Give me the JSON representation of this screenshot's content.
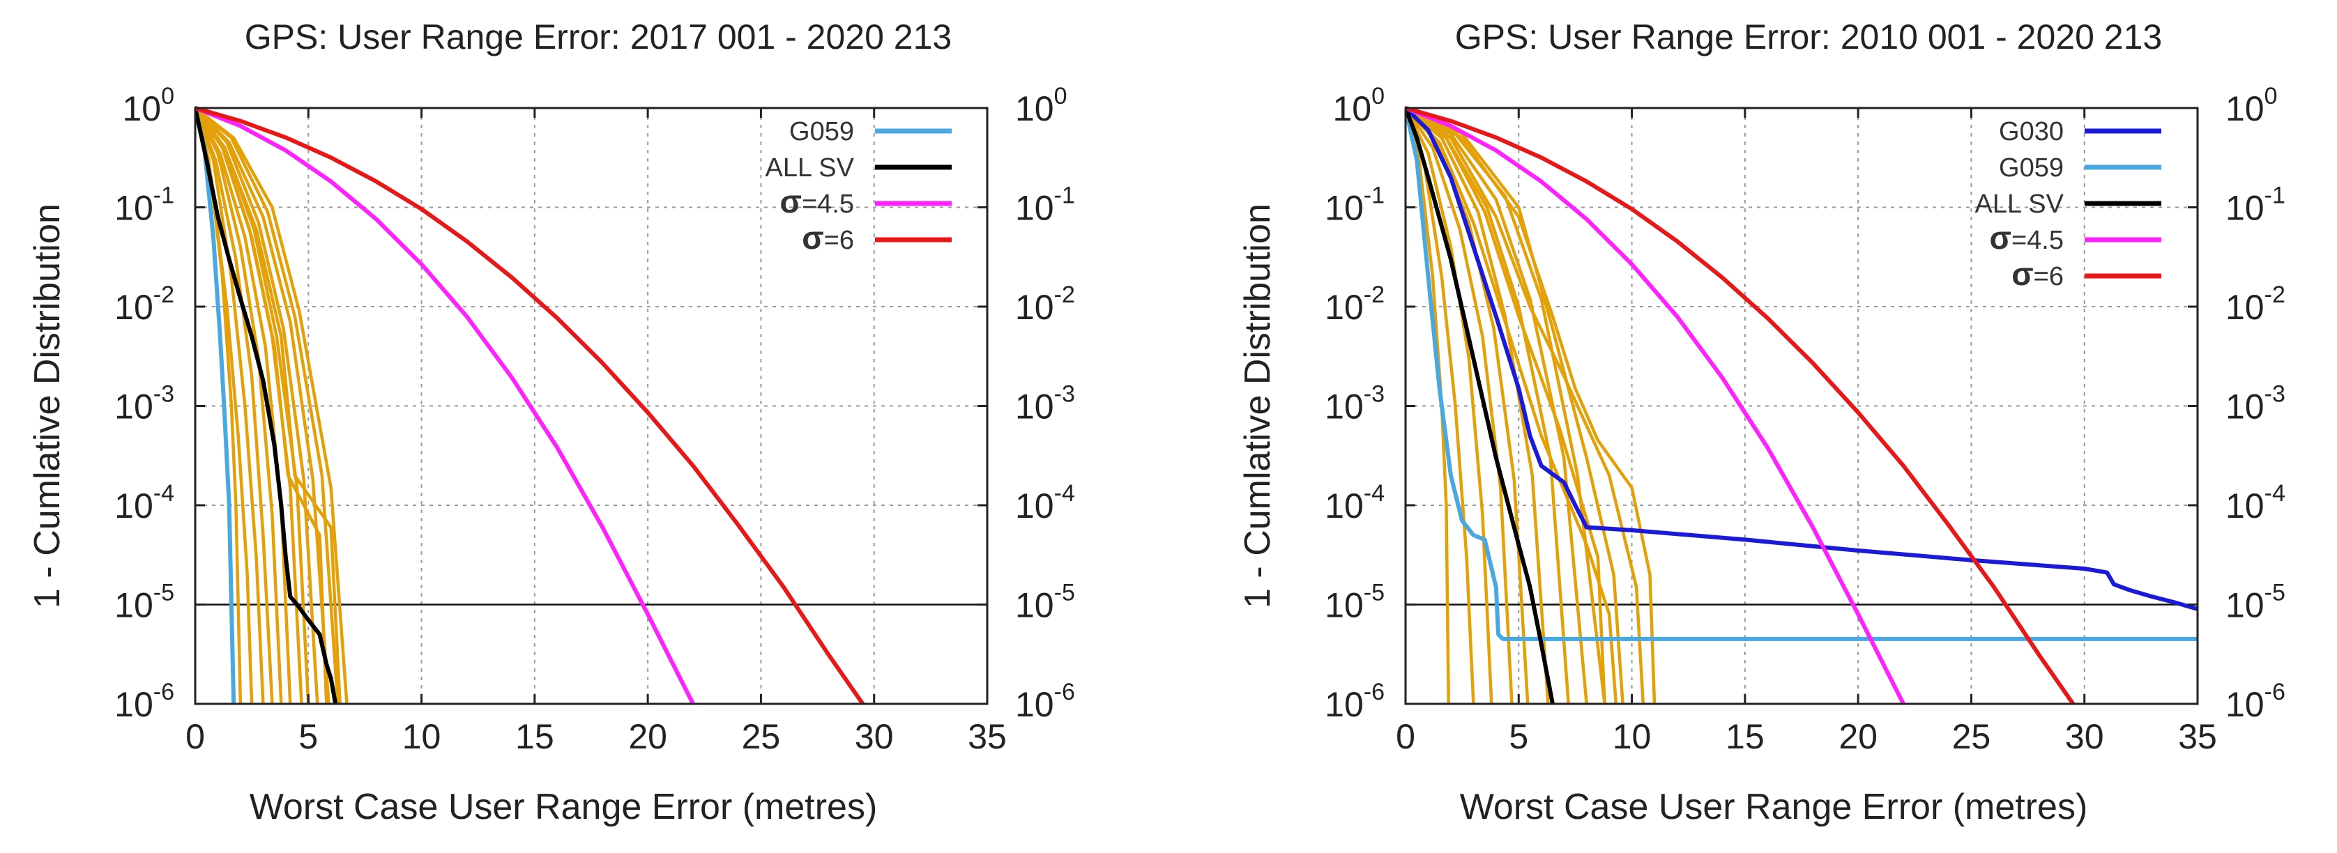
{
  "chart_data": [
    {
      "type": "line",
      "title": "GPS: User Range Error: 2017 001 - 2020 213",
      "xlabel": "Worst Case User Range Error (metres)",
      "ylabel": "1 - Cumlative Distribution",
      "xlim": [
        0,
        35
      ],
      "ylim": [
        1e-06,
        1
      ],
      "yscale": "log",
      "x_ticks": [
        "0",
        "5",
        "10",
        "15",
        "20",
        "25",
        "30",
        "35"
      ],
      "y_tick_exponents": [
        "0",
        "-1",
        "-2",
        "-3",
        "-4",
        "-5",
        "-6"
      ],
      "y_tick_base": "10",
      "threshold_y": 1e-05,
      "grid": true,
      "legend_position": "top-right",
      "legend_sigma_symbol": "σ",
      "series": [
        {
          "name": "G059",
          "legend_label": "G059",
          "color": "#4aa8e0",
          "x": [
            0,
            0.4,
            0.8,
            1.1,
            1.3,
            1.5,
            1.6,
            1.65,
            1.7
          ],
          "y": [
            1,
            0.4,
            0.05,
            0.005,
            0.0008,
            0.0001,
            1e-05,
            3e-06,
            1e-06
          ]
        },
        {
          "name": "ALL SV",
          "legend_label": "ALL SV",
          "color": "#000000",
          "x": [
            0,
            0.5,
            1.0,
            1.5,
            2.0,
            2.5,
            3.0,
            3.5,
            3.8,
            4.0,
            4.2,
            4.5,
            5.0,
            5.5,
            5.8,
            6.0,
            6.2
          ],
          "y": [
            1,
            0.3,
            0.08,
            0.03,
            0.012,
            0.005,
            0.0018,
            0.0004,
            0.0001,
            3e-05,
            1.2e-05,
            1e-05,
            7e-06,
            5e-06,
            2.5e-06,
            1.8e-06,
            1e-06
          ]
        },
        {
          "name": "σ=4.5",
          "legend_label": "=4.5",
          "color": "#ff22ff",
          "x": [
            0,
            2,
            4,
            6,
            8,
            10,
            12,
            14,
            16,
            18,
            20,
            22
          ],
          "y": [
            1,
            0.66,
            0.374,
            0.182,
            0.076,
            0.0267,
            0.00796,
            0.00192,
            0.00038,
            6e-05,
            8e-06,
            1e-06
          ]
        },
        {
          "name": "σ=6",
          "legend_label": "=6",
          "color": "#e81818",
          "x": [
            0,
            2,
            4,
            6,
            8,
            10,
            12,
            14,
            16,
            18,
            20,
            22,
            24,
            26,
            28,
            29.5
          ],
          "y": [
            1,
            0.74,
            0.505,
            0.317,
            0.182,
            0.096,
            0.0455,
            0.0196,
            0.00766,
            0.0027,
            0.00086,
            0.00025,
            6.3e-05,
            1.5e-05,
            3.1e-06,
            1e-06
          ]
        }
      ],
      "sv_color": "#e3a008",
      "sv_curves": [
        {
          "x": [
            0,
            0.6,
            1.2,
            1.6,
            1.8,
            2.0
          ],
          "y": [
            1,
            0.3,
            0.02,
            0.001,
            0.0001,
            1e-06
          ]
        },
        {
          "x": [
            0,
            0.7,
            1.4,
            1.9,
            2.3,
            2.5
          ],
          "y": [
            1,
            0.2,
            0.01,
            0.0005,
            2e-05,
            1e-06
          ]
        },
        {
          "x": [
            0,
            0.8,
            1.6,
            2.2,
            2.7,
            3.0
          ],
          "y": [
            1,
            0.3,
            0.02,
            0.001,
            3e-05,
            1e-06
          ]
        },
        {
          "x": [
            0,
            0.9,
            1.8,
            2.5,
            3.0,
            3.4
          ],
          "y": [
            1,
            0.3,
            0.03,
            0.002,
            5e-05,
            1e-06
          ]
        },
        {
          "x": [
            0,
            1.0,
            2.0,
            2.8,
            3.4,
            3.8
          ],
          "y": [
            1,
            0.35,
            0.04,
            0.003,
            8e-05,
            1e-06
          ]
        },
        {
          "x": [
            0,
            1.1,
            2.2,
            3.1,
            3.8,
            4.2
          ],
          "y": [
            1,
            0.35,
            0.05,
            0.004,
            0.0001,
            1e-06
          ]
        },
        {
          "x": [
            0,
            1.2,
            2.4,
            3.4,
            4.2,
            4.7
          ],
          "y": [
            1,
            0.4,
            0.06,
            0.005,
            0.00015,
            1e-06
          ]
        },
        {
          "x": [
            0,
            1.3,
            2.6,
            3.6,
            4.5,
            5.0
          ],
          "y": [
            1,
            0.4,
            0.06,
            0.005,
            0.00015,
            1e-06
          ]
        },
        {
          "x": [
            0,
            1.4,
            2.8,
            3.9,
            4.8,
            5.4
          ],
          "y": [
            1,
            0.45,
            0.07,
            0.006,
            0.00018,
            1e-06
          ]
        },
        {
          "x": [
            0,
            1.5,
            3.0,
            4.2,
            5.2,
            5.9
          ],
          "y": [
            1,
            0.45,
            0.08,
            0.007,
            0.00018,
            1e-06
          ]
        },
        {
          "x": [
            0,
            1.6,
            3.2,
            4.4,
            5.6,
            6.3
          ],
          "y": [
            1,
            0.5,
            0.09,
            0.008,
            0.0002,
            1e-06
          ]
        },
        {
          "x": [
            0,
            1.7,
            3.4,
            4.6,
            6.0,
            6.7
          ],
          "y": [
            1,
            0.5,
            0.1,
            0.009,
            0.00015,
            1e-06
          ]
        },
        {
          "x": [
            0,
            1.3,
            2.7,
            3.8,
            4.4,
            6.0,
            6.4
          ],
          "y": [
            1,
            0.4,
            0.06,
            0.005,
            0.0002,
            6e-05,
            1e-06
          ]
        },
        {
          "x": [
            0,
            1.2,
            2.5,
            3.5,
            4.1,
            5.5,
            5.8
          ],
          "y": [
            1,
            0.4,
            0.05,
            0.004,
            0.0002,
            5e-05,
            1e-06
          ]
        }
      ]
    },
    {
      "type": "line",
      "title": "GPS: User Range Error: 2010 001 - 2020 213",
      "xlabel": "Worst Case User Range Error (metres)",
      "ylabel": "1 - Cumlative Distribution",
      "xlim": [
        0,
        35
      ],
      "ylim": [
        1e-06,
        1
      ],
      "yscale": "log",
      "x_ticks": [
        "0",
        "5",
        "10",
        "15",
        "20",
        "25",
        "30",
        "35"
      ],
      "y_tick_exponents": [
        "0",
        "-1",
        "-2",
        "-3",
        "-4",
        "-5",
        "-6"
      ],
      "y_tick_base": "10",
      "threshold_y": 1e-05,
      "grid": true,
      "legend_position": "top-right",
      "legend_sigma_symbol": "σ",
      "series": [
        {
          "name": "G030",
          "legend_label": "G030",
          "color": "#1a1ad8",
          "x": [
            0,
            1,
            2,
            3,
            4,
            5,
            5.5,
            6,
            7,
            7.5,
            8,
            10,
            15,
            20,
            25,
            30,
            31,
            31.3,
            32,
            33,
            34,
            35
          ],
          "y": [
            1,
            0.6,
            0.2,
            0.04,
            0.008,
            0.0015,
            0.0005,
            0.00025,
            0.00017,
            0.0001,
            6e-05,
            5.6e-05,
            4.5e-05,
            3.5e-05,
            2.8e-05,
            2.3e-05,
            2.1e-05,
            1.6e-05,
            1.4e-05,
            1.2e-05,
            1.05e-05,
            9e-06
          ]
        },
        {
          "name": "G059",
          "legend_label": "G059",
          "color": "#4aa8e0",
          "x": [
            0,
            0.5,
            1.0,
            1.5,
            2.0,
            2.5,
            3.0,
            3.5,
            4.0,
            4.1,
            4.3,
            35
          ],
          "y": [
            1,
            0.3,
            0.02,
            0.0015,
            0.0002,
            7e-05,
            5e-05,
            4.5e-05,
            1.5e-05,
            5e-06,
            4.5e-06,
            4.5e-06
          ]
        },
        {
          "name": "ALL SV",
          "legend_label": "ALL SV",
          "color": "#000000",
          "x": [
            0,
            0.5,
            1.0,
            2.0,
            3.0,
            4.0,
            5.0,
            5.5,
            6.0,
            6.5
          ],
          "y": [
            1,
            0.5,
            0.2,
            0.03,
            0.003,
            0.0003,
            4e-05,
            1.5e-05,
            4e-06,
            1e-06
          ]
        },
        {
          "name": "σ=4.5",
          "legend_label": "=4.5",
          "color": "#ff22ff",
          "x": [
            0,
            2,
            4,
            6,
            8,
            10,
            12,
            14,
            16,
            18,
            20,
            22
          ],
          "y": [
            1,
            0.66,
            0.374,
            0.182,
            0.076,
            0.0267,
            0.00796,
            0.00192,
            0.00038,
            6e-05,
            8e-06,
            1e-06
          ]
        },
        {
          "name": "σ=6",
          "legend_label": "=6",
          "color": "#e81818",
          "x": [
            0,
            2,
            4,
            6,
            8,
            10,
            12,
            14,
            16,
            18,
            20,
            22,
            24,
            26,
            28,
            29.5
          ],
          "y": [
            1,
            0.74,
            0.505,
            0.317,
            0.182,
            0.096,
            0.0455,
            0.0196,
            0.00766,
            0.0027,
            0.00086,
            0.00025,
            6.3e-05,
            1.5e-05,
            3.1e-06,
            1e-06
          ]
        }
      ],
      "sv_color": "#e3a008",
      "sv_curves": [
        {
          "x": [
            0,
            0.6,
            1.2,
            1.6,
            1.8,
            1.9
          ],
          "y": [
            1,
            0.3,
            0.02,
            0.001,
            0.0001,
            1e-06
          ]
        },
        {
          "x": [
            0,
            0.8,
            1.6,
            2.2,
            2.7,
            3.0
          ],
          "y": [
            1,
            0.3,
            0.02,
            0.001,
            3e-05,
            1e-06
          ]
        },
        {
          "x": [
            0,
            1.0,
            2.0,
            2.8,
            3.4,
            3.8
          ],
          "y": [
            1,
            0.35,
            0.04,
            0.003,
            8e-05,
            1e-06
          ]
        },
        {
          "x": [
            0,
            1.2,
            2.4,
            3.4,
            4.2,
            4.7
          ],
          "y": [
            1,
            0.4,
            0.06,
            0.005,
            0.00015,
            1e-06
          ]
        },
        {
          "x": [
            0,
            1.4,
            2.8,
            3.9,
            4.8,
            5.4
          ],
          "y": [
            1,
            0.45,
            0.07,
            0.006,
            0.00018,
            1e-06
          ]
        },
        {
          "x": [
            0,
            1.6,
            3.2,
            4.4,
            5.6,
            6.3
          ],
          "y": [
            1,
            0.5,
            0.09,
            0.008,
            0.0002,
            1e-06
          ]
        },
        {
          "x": [
            0,
            1.8,
            3.6,
            5.0,
            6.4,
            7.2
          ],
          "y": [
            1,
            0.5,
            0.1,
            0.01,
            0.0003,
            1e-06
          ]
        },
        {
          "x": [
            0,
            2.0,
            4.0,
            5.5,
            7.0,
            8.0
          ],
          "y": [
            1,
            0.55,
            0.12,
            0.012,
            0.0003,
            1e-06
          ]
        },
        {
          "x": [
            0,
            2.2,
            4.4,
            6.0,
            7.6,
            8.8
          ],
          "y": [
            1,
            0.55,
            0.13,
            0.012,
            0.0002,
            1e-06
          ]
        },
        {
          "x": [
            0,
            2.5,
            5.0,
            6.5,
            8.0,
            9.2,
            9.6
          ],
          "y": [
            1,
            0.55,
            0.1,
            0.006,
            0.0003,
            2e-05,
            1e-06
          ]
        },
        {
          "x": [
            0,
            2.0,
            4.0,
            5.5,
            7.0,
            9.0,
            10.2,
            10.5
          ],
          "y": [
            1,
            0.5,
            0.08,
            0.01,
            0.002,
            0.0002,
            1.5e-05,
            1e-06
          ]
        },
        {
          "x": [
            0,
            2.5,
            5.0,
            6.5,
            7.5,
            8.5,
            10.0,
            10.8,
            11.0
          ],
          "y": [
            1,
            0.5,
            0.08,
            0.008,
            0.0015,
            0.00045,
            0.00015,
            2e-05,
            1e-06
          ]
        },
        {
          "x": [
            0,
            1.5,
            3.0,
            4.5,
            6.0,
            8.0,
            9.0,
            9.3
          ],
          "y": [
            1,
            0.45,
            0.07,
            0.006,
            0.0005,
            4e-05,
            8e-06,
            1e-06
          ]
        },
        {
          "x": [
            0,
            1.8,
            3.5,
            5.0,
            6.8,
            8.5,
            8.8
          ],
          "y": [
            1,
            0.5,
            0.09,
            0.008,
            0.0006,
            3e-05,
            1e-06
          ]
        }
      ]
    }
  ]
}
